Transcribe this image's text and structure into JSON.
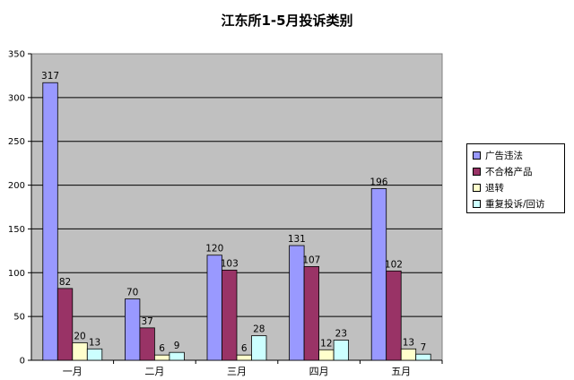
{
  "chart_data": {
    "type": "bar",
    "title": "江东所1-5月投诉类别",
    "categories": [
      "一月",
      "二月",
      "三月",
      "四月",
      "五月"
    ],
    "series": [
      {
        "name": "广告违法",
        "color": "#9999ff",
        "values": [
          317,
          70,
          120,
          131,
          196
        ]
      },
      {
        "name": "不合格产品",
        "color": "#993366",
        "values": [
          82,
          37,
          103,
          107,
          102
        ]
      },
      {
        "name": "退转",
        "color": "#ffffcc",
        "values": [
          20,
          6,
          6,
          12,
          13
        ]
      },
      {
        "name": "重复投诉/回访",
        "color": "#ccffff",
        "values": [
          13,
          9,
          28,
          23,
          7
        ]
      }
    ],
    "ylim": [
      0,
      350
    ],
    "yticks": [
      0,
      50,
      100,
      150,
      200,
      250,
      300,
      350
    ],
    "grid": true,
    "plot_background": "#c0c0c0",
    "legend_position": "right",
    "data_labels": true
  }
}
